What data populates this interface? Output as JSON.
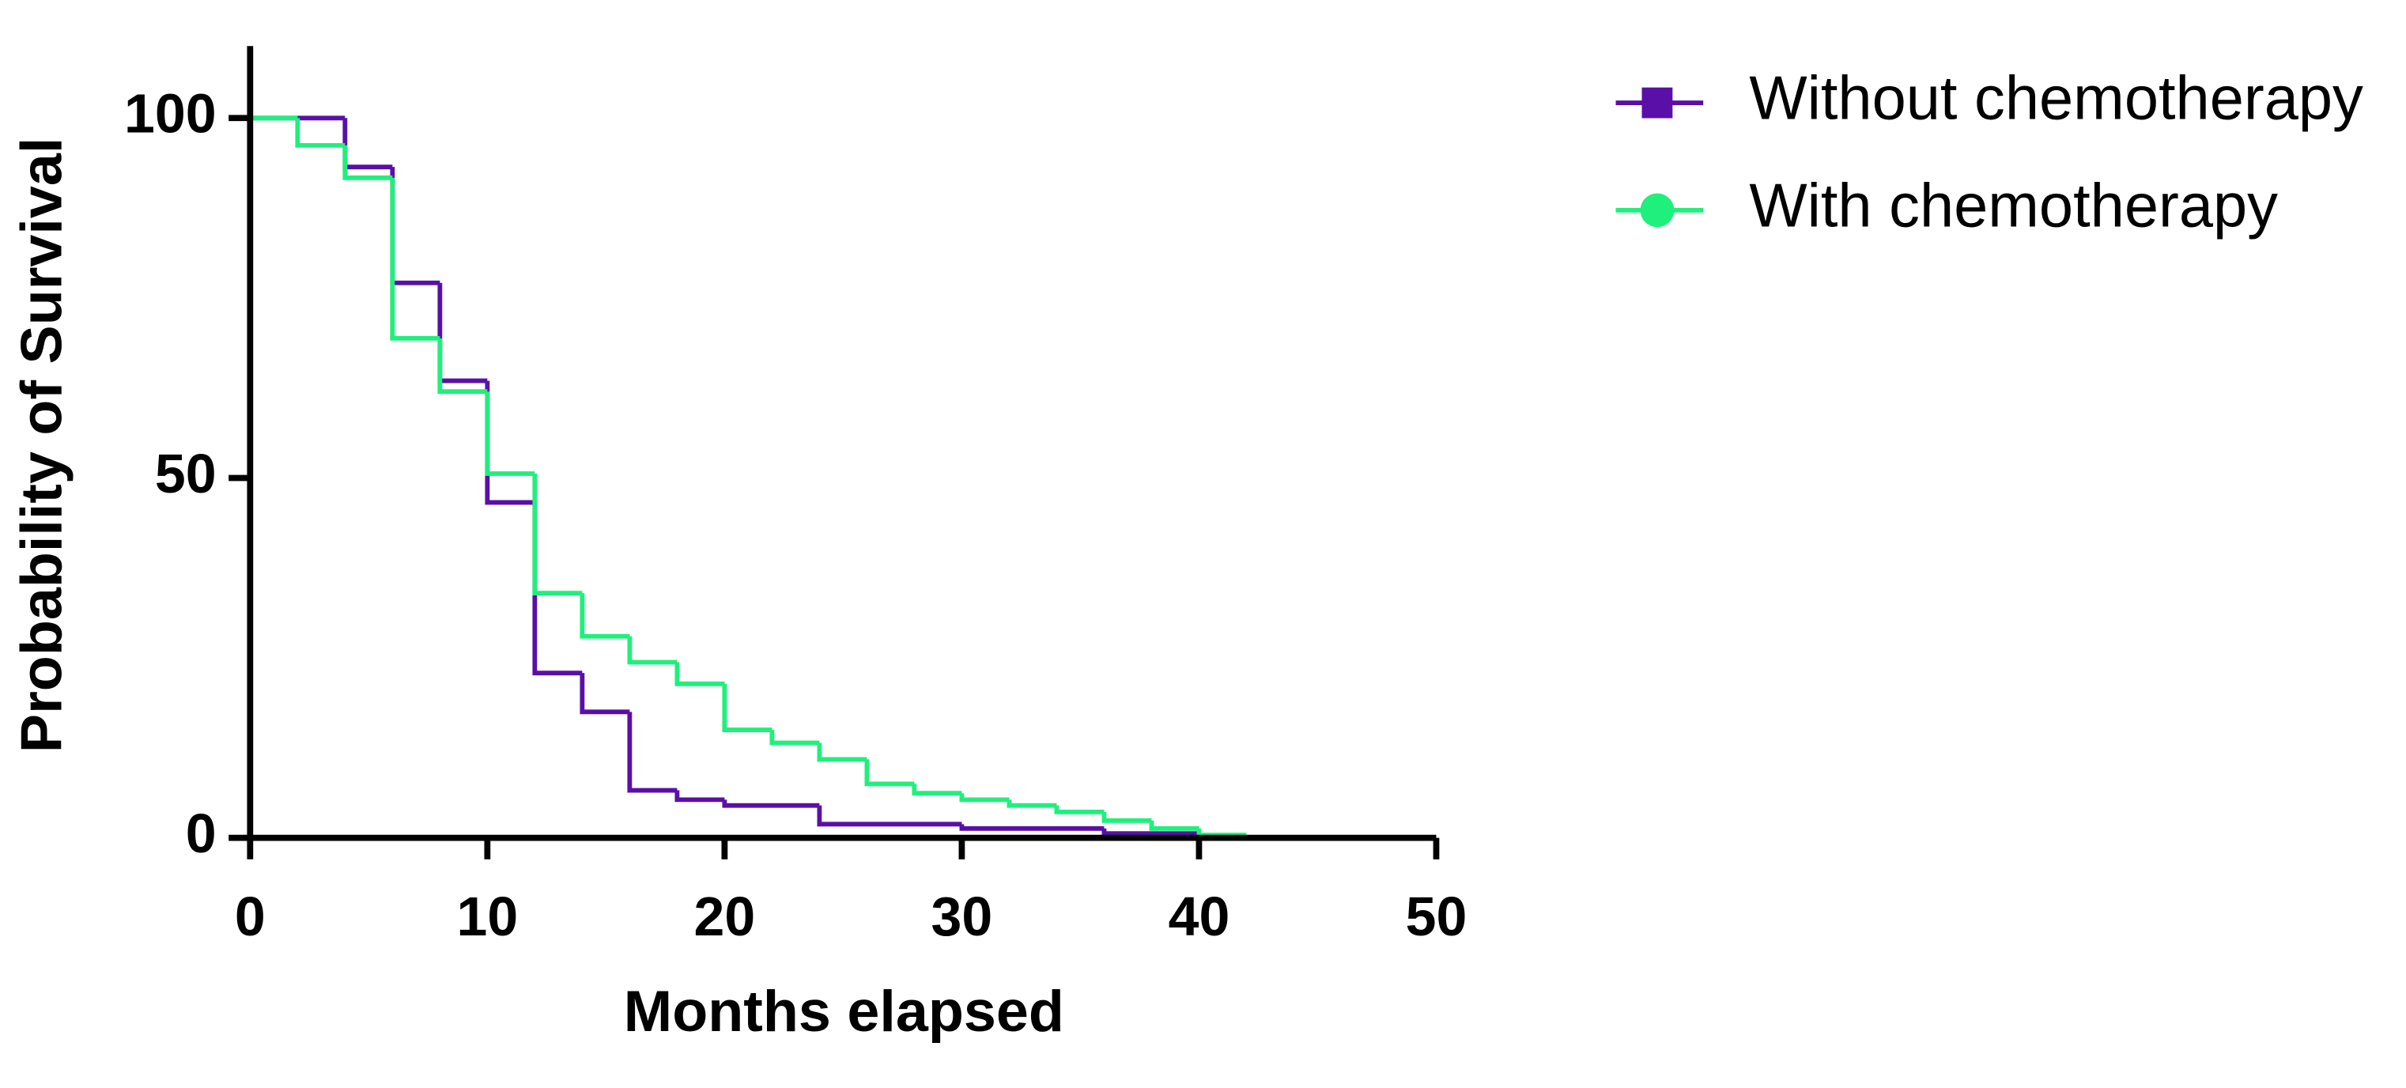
{
  "chart_data": {
    "type": "step",
    "x_label": "Months elapsed",
    "y_label": "Probability of Survival",
    "xlim": [
      0,
      50
    ],
    "xticks": [
      0,
      10,
      20,
      30,
      40,
      50
    ],
    "ylim": [
      0,
      110
    ],
    "yticks": [
      0,
      50,
      100
    ],
    "legend": "right",
    "series": [
      {
        "name": "Without chemotherapy",
        "color": "#5a0fa8",
        "marker": "square",
        "x": [
          0,
          4,
          6,
          8,
          10,
          12,
          14,
          16,
          18,
          20,
          24,
          30,
          36,
          40
        ],
        "values": [
          100,
          93.2,
          77.1,
          63.5,
          46.6,
          22.9,
          17.5,
          6.6,
          5.3,
          4.5,
          1.9,
          1.3,
          0.6,
          0
        ]
      },
      {
        "name": "With chemotherapy",
        "color": "#1ff07c",
        "marker": "circle",
        "x": [
          0,
          2,
          4,
          6,
          8,
          10,
          12,
          14,
          16,
          18,
          20,
          22,
          24,
          26,
          28,
          30,
          32,
          34,
          36,
          38,
          40,
          42
        ],
        "values": [
          100,
          96.2,
          91.7,
          69.4,
          62,
          50.6,
          34,
          28,
          24.4,
          21.4,
          15,
          13.2,
          10.9,
          7.5,
          6.2,
          5.3,
          4.5,
          3.6,
          2.4,
          1.3,
          0.4,
          0
        ]
      }
    ]
  }
}
